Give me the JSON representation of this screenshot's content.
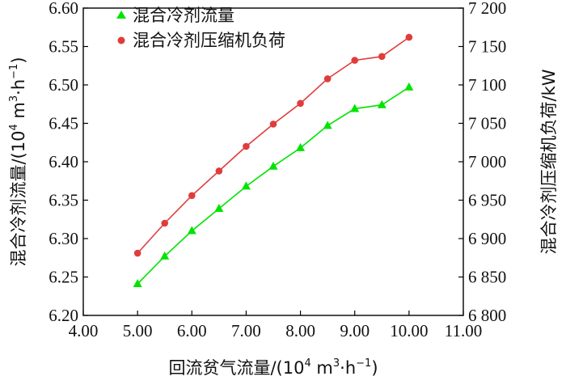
{
  "chart_data": {
    "type": "line",
    "title": "",
    "xlabel": {
      "main": "回流贫气流量/(10",
      "exp1": "4",
      "mid": " m",
      "exp2": "3",
      "tail": "·h",
      "exp3": "−1",
      "close": ")"
    },
    "ylabel_left": {
      "main": "混合冷剂流量/(10",
      "exp1": "4",
      "mid": " m",
      "exp2": "3",
      "tail": "·h",
      "exp3": "−1",
      "close": ")"
    },
    "ylabel_right": "混合冷剂压缩机负荷/kW",
    "xlim": [
      4.0,
      11.0
    ],
    "ylim_left": [
      6.2,
      6.6
    ],
    "ylim_right": [
      6800,
      7200
    ],
    "x_ticks": [
      "4.00",
      "5.00",
      "6.00",
      "7.00",
      "8.00",
      "9.00",
      "10.00",
      "11.00"
    ],
    "y_left_ticks": [
      "6.20",
      "6.25",
      "6.30",
      "6.35",
      "6.40",
      "6.45",
      "6.50",
      "6.55",
      "6.60"
    ],
    "y_right_ticks": [
      "6 800",
      "6 850",
      "6 900",
      "6 950",
      "7 000",
      "7 050",
      "7 100",
      "7 150",
      "7 200"
    ],
    "legend_position": "top-left",
    "series": [
      {
        "name": "混合冷剂流量",
        "axis": "left",
        "marker": "triangle",
        "color": "#00e400",
        "x": [
          5.0,
          5.5,
          6.0,
          6.5,
          7.0,
          7.5,
          8.0,
          8.5,
          9.0,
          9.5,
          10.0
        ],
        "y": [
          6.241,
          6.277,
          6.31,
          6.339,
          6.368,
          6.394,
          6.418,
          6.447,
          6.469,
          6.474,
          6.497
        ]
      },
      {
        "name": "混合冷剂压缩机负荷",
        "axis": "right",
        "marker": "circle",
        "color": "#e03c3c",
        "x": [
          5.0,
          5.5,
          6.0,
          6.5,
          7.0,
          7.5,
          8.0,
          8.5,
          9.0,
          9.5,
          10.0
        ],
        "y": [
          6881,
          6920,
          6956,
          6988,
          7020,
          7049,
          7076,
          7108,
          7132,
          7137,
          7162
        ]
      }
    ]
  }
}
